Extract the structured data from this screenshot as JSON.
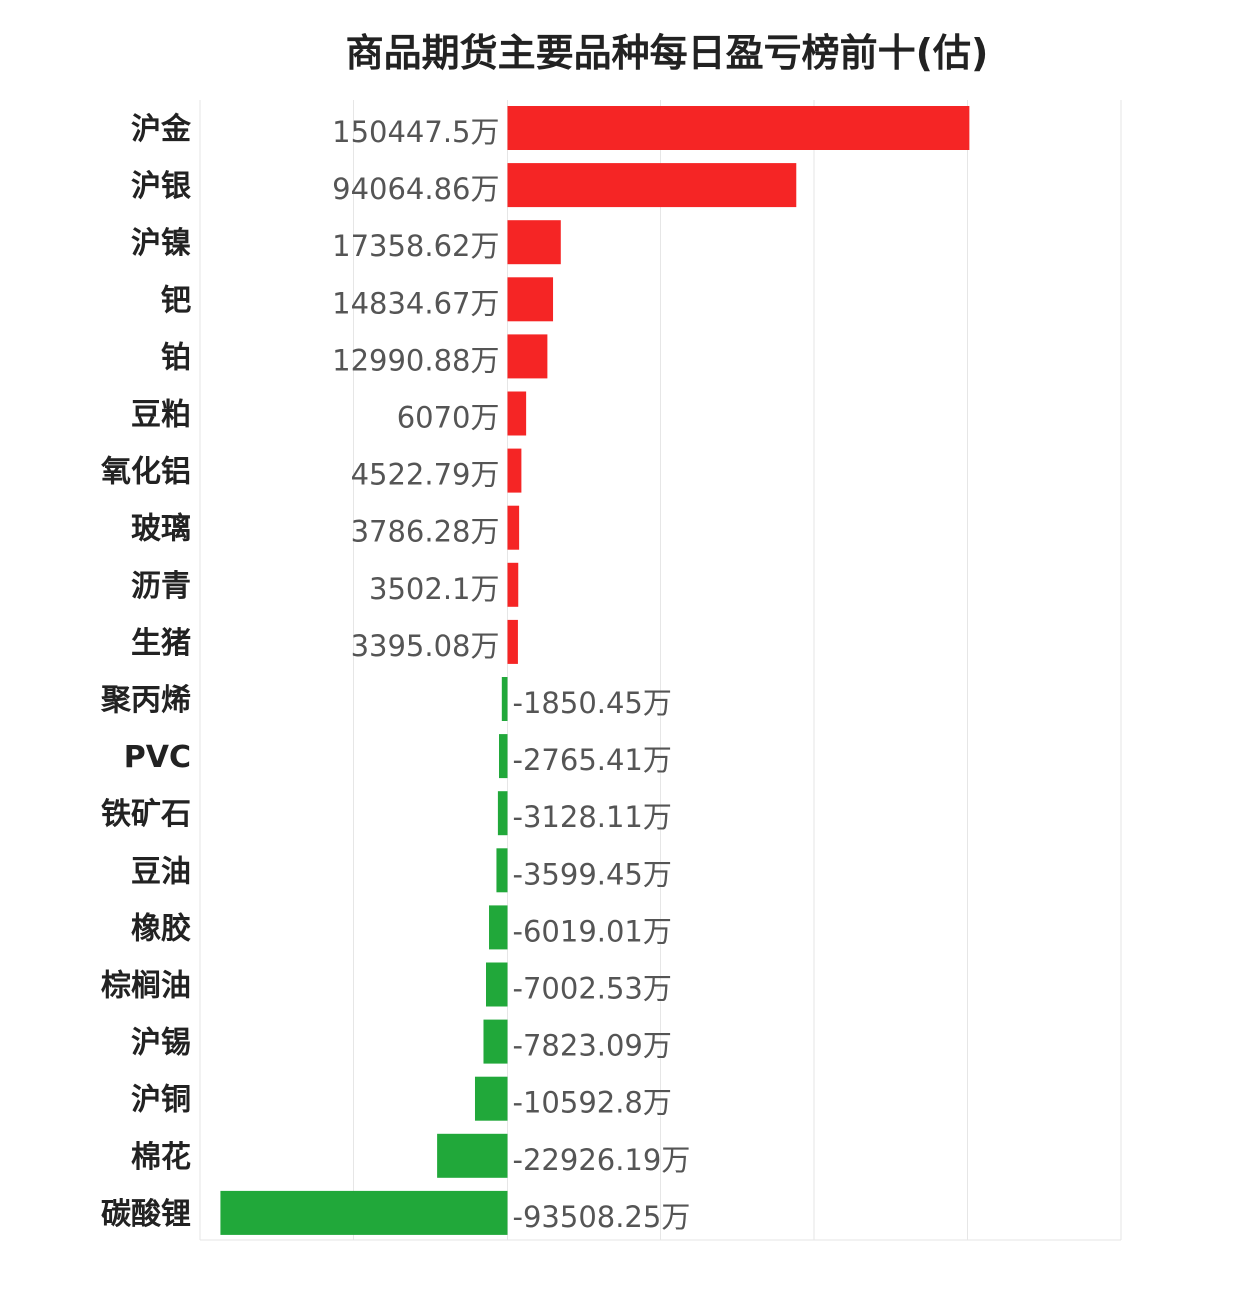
{
  "chart_data": {
    "type": "bar",
    "orientation": "horizontal",
    "title": "商品期货主要品种每日盈亏榜前十(估)",
    "unit": "万",
    "categories": [
      "沪金",
      "沪银",
      "沪镍",
      "钯",
      "铂",
      "豆粕",
      "氧化铝",
      "玻璃",
      "沥青",
      "生猪",
      "聚丙烯",
      "PVC",
      "铁矿石",
      "豆油",
      "橡胶",
      "棕榈油",
      "沪锡",
      "沪铜",
      "棉花",
      "碳酸锂"
    ],
    "values": [
      150447.5,
      94064.86,
      17358.62,
      14834.67,
      12990.88,
      6070,
      4522.79,
      3786.28,
      3502.1,
      3395.08,
      -1850.45,
      -2765.41,
      -3128.11,
      -3599.45,
      -6019.01,
      -7002.53,
      -7823.09,
      -10592.8,
      -22926.19,
      -93508.25
    ],
    "labels": [
      "150447.5万",
      "94064.86万",
      "17358.62万",
      "14834.67万",
      "12990.88万",
      "6070万",
      "4522.79万",
      "3786.28万",
      "3502.1万",
      "3395.08万",
      "-1850.45万",
      "-2765.41万",
      "-3128.11万",
      "-3599.45万",
      "-6019.01万",
      "-7002.53万",
      "-7823.09万",
      "-10592.8万",
      "-22926.19万",
      "-93508.25万"
    ],
    "xlim": [
      -100000,
      200000
    ],
    "grid": true,
    "colors": {
      "positive": "#f52525",
      "negative": "#21a83a",
      "grid": "#e6e6e6"
    }
  }
}
